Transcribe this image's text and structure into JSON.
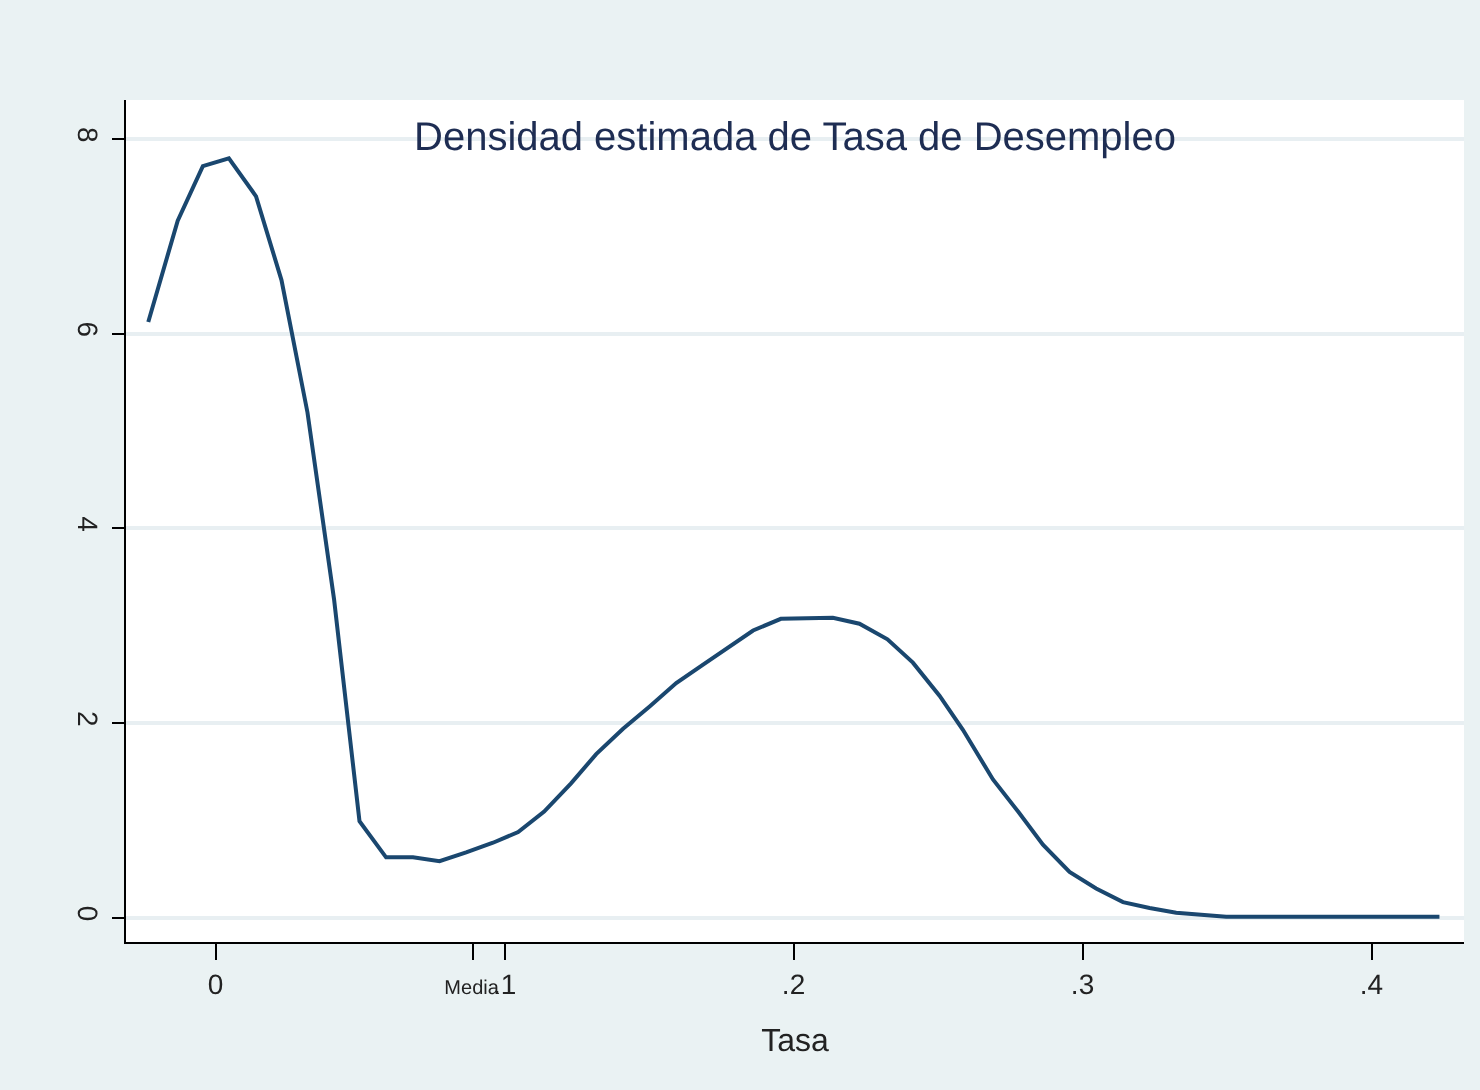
{
  "chart_data": {
    "type": "line",
    "title": "Densidad estimada de Tasa de Desempleo",
    "xlabel": "Tasa",
    "x": [
      -0.0233,
      -0.0131,
      -0.0044,
      0.0046,
      0.014,
      0.0228,
      0.0318,
      0.041,
      0.0498,
      0.059,
      0.0683,
      0.0775,
      0.0867,
      0.096,
      0.1047,
      0.1137,
      0.123,
      0.1317,
      0.141,
      0.1502,
      0.1594,
      0.1687,
      0.186,
      0.1956,
      0.2136,
      0.2228,
      0.2325,
      0.2413,
      0.2505,
      0.2586,
      0.269,
      0.2777,
      0.2863,
      0.2955,
      0.3047,
      0.314,
      0.3232,
      0.3324,
      0.3497,
      0.3774,
      0.3866,
      0.405,
      0.4235
    ],
    "series": [
      {
        "color": "#1a476f",
        "values": [
          6.12,
          7.16,
          7.72,
          7.8,
          7.41,
          6.55,
          5.19,
          3.27,
          0.99,
          0.62,
          0.62,
          0.58,
          0.67,
          0.77,
          0.88,
          1.09,
          1.38,
          1.68,
          1.94,
          2.17,
          2.41,
          2.6,
          2.95,
          3.07,
          3.08,
          3.02,
          2.86,
          2.62,
          2.28,
          1.93,
          1.42,
          1.09,
          0.75,
          0.47,
          0.3,
          0.16,
          0.1,
          0.05,
          0.01,
          0.01,
          0.01,
          0.01,
          0.01
        ]
      }
    ],
    "xlim": [
      -0.031,
      0.432
    ],
    "ylim": [
      -0.25,
      8.4
    ],
    "xticks": [
      0,
      {
        "value": 0.089,
        "label": "Media"
      },
      {
        "value": 0.1,
        "label": ".1"
      },
      {
        "value": 0.2,
        "label": ".2"
      },
      {
        "value": 0.3,
        "label": ".3"
      },
      {
        "value": 0.4,
        "label": ".4"
      }
    ],
    "yticks": [
      0,
      2,
      4,
      6,
      8
    ],
    "grid": "y",
    "marker": "none",
    "line_style": "solid"
  }
}
